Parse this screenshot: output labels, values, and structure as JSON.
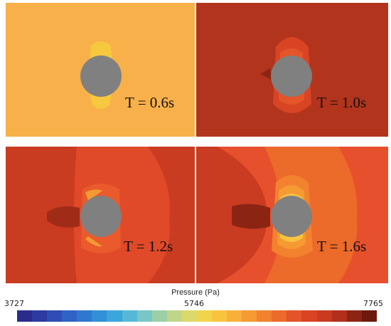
{
  "panels": [
    {
      "label": "T = 0.6s",
      "background": "#f8b04a"
    },
    {
      "label": "T = 1.0s",
      "background": "#b2341c"
    },
    {
      "label": "T = 1.2s",
      "background": "#c93c22"
    },
    {
      "label": "T = 1.6s",
      "background": "#e7502c"
    }
  ],
  "colorbar": {
    "title": "Pressure (Pa)",
    "min_label": "3727",
    "mid_label": "5746",
    "max_label": "7765",
    "colors": [
      "#2a2c8c",
      "#2d3aa0",
      "#2f4db4",
      "#2f63c4",
      "#2f78d0",
      "#3190d8",
      "#3aa6dc",
      "#55b8d6",
      "#78c6c6",
      "#9ccfa8",
      "#bfd68a",
      "#dcd96c",
      "#f2d44c",
      "#f8c440",
      "#f8b03a",
      "#f69a34",
      "#f2822e",
      "#ec6a2a",
      "#e45428",
      "#d84424",
      "#c93a20",
      "#b0301c",
      "#8c2414",
      "#6b1a0c"
    ]
  },
  "cylinder_color": "#808080"
}
